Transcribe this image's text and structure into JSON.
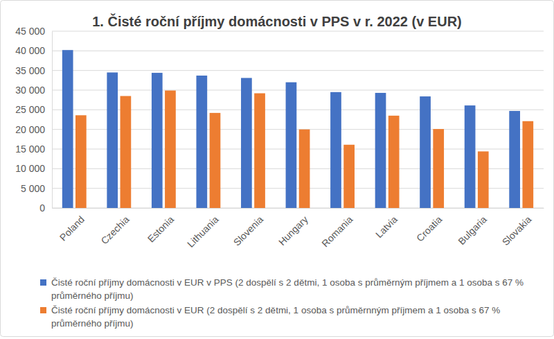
{
  "chart_data": {
    "type": "bar",
    "title": "1. Čisté roční příjmy domácnosti v PPS v r. 2022 (v EUR)",
    "categories": [
      "Poland",
      "Czechia",
      "Estonia",
      "Lithuania",
      "Slovenia",
      "Hungary",
      "Romania",
      "Latvia",
      "Croatia",
      "Bulgaria",
      "Slovakia"
    ],
    "series": [
      {
        "name": "Čisté roční příjmy domácnosti v EUR v PPS (2 dospělí s 2 dětmi, 1 osoba s průměrným příjmem a 1 osoba s 67 % průměrného příjmu)",
        "color": "#4472c4",
        "values": [
          40200,
          34500,
          34400,
          33700,
          33100,
          32000,
          29500,
          29300,
          28400,
          26100,
          24700
        ]
      },
      {
        "name": "Čisté roční příjmy domácnosti v EUR (2 dospělí s 2 dětmi, 1 osoba s průměrnným příjmem a 1 osoba s 67 % průměrného příjmu)",
        "color": "#ed7d31",
        "values": [
          23600,
          28500,
          29900,
          24200,
          29200,
          20000,
          16100,
          23500,
          20100,
          14400,
          22100
        ]
      }
    ],
    "ylim": [
      0,
      45000
    ],
    "yticks": [
      0,
      {
        "value": 5000,
        "label": "5 000"
      },
      {
        "value": 10000,
        "label": "10 000"
      },
      {
        "value": 15000,
        "label": "15 000"
      },
      {
        "value": 20000,
        "label": "20 000"
      },
      {
        "value": 25000,
        "label": "25 000"
      },
      {
        "value": 30000,
        "label": "30 000"
      },
      {
        "value": 35000,
        "label": "35 000"
      },
      {
        "value": 40000,
        "label": "40 000"
      },
      {
        "value": 45000,
        "label": "45 000"
      }
    ],
    "grid": true,
    "legend": "bottom"
  }
}
